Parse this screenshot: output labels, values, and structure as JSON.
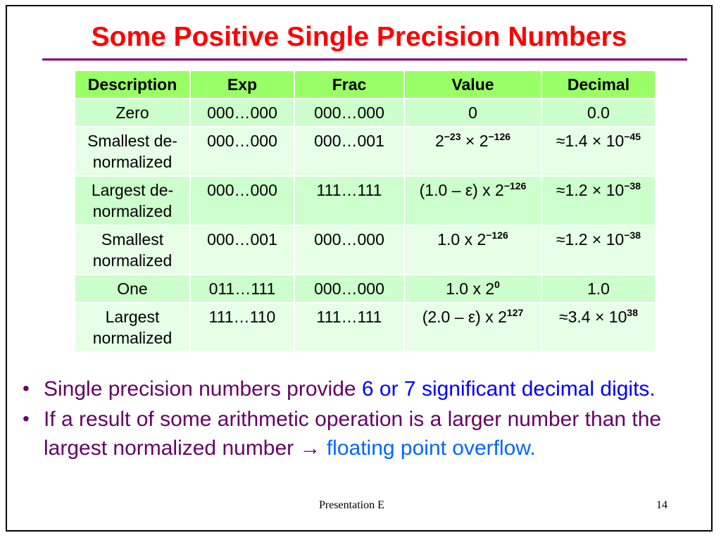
{
  "slide": {
    "title": "Some Positive Single Precision Numbers",
    "table": {
      "headers": [
        "Description",
        "Exp",
        "Frac",
        "Value",
        "Decimal"
      ],
      "rows": [
        {
          "description": "Zero",
          "exp": "000…000",
          "frac": "000…000",
          "value": {
            "pre": "0",
            "exp": "",
            "post": ""
          },
          "decimal": {
            "pre": "0.0",
            "exp": ""
          }
        },
        {
          "description": "Smallest de-normalized",
          "exp": "000…000",
          "frac": "000…001",
          "value": {
            "pre": "2",
            "exp": "−23",
            "post": " × 2",
            "exp2": "−126"
          },
          "decimal": {
            "pre": "≈1.4 × 10",
            "exp": "−45"
          }
        },
        {
          "description": "Largest de-normalized",
          "exp": "000…000",
          "frac": "111…111",
          "value": {
            "pre": "(1.0 – ε) x 2",
            "exp": "−126",
            "post": ""
          },
          "decimal": {
            "pre": "≈1.2 × 10",
            "exp": "−38"
          }
        },
        {
          "description": "Smallest normalized",
          "exp": "000…001",
          "frac": "000…000",
          "value": {
            "pre": "1.0 x 2",
            "exp": "−126",
            "post": ""
          },
          "decimal": {
            "pre": "≈1.2 × 10",
            "exp": "−38"
          }
        },
        {
          "description": "One",
          "exp": "011…111",
          "frac": "000…000",
          "value": {
            "pre": "1.0 x 2",
            "exp": "0",
            "post": ""
          },
          "decimal": {
            "pre": "1.0",
            "exp": ""
          }
        },
        {
          "description": "Largest normalized",
          "exp": "111…110",
          "frac": "111…111",
          "value": {
            "pre": "(2.0 – ε) x 2",
            "exp": "127",
            "post": ""
          },
          "decimal": {
            "pre": "≈3.4 × 10",
            "exp": "38"
          }
        }
      ]
    },
    "bullets": [
      {
        "text": "Single precision numbers provide ",
        "highlight": "6 or 7 significant decimal digits."
      },
      {
        "text": "If a result of some arithmetic operation is a larger number than the largest normalized number → ",
        "highlight": "floating point overflow."
      }
    ],
    "footer": {
      "center": "Presentation E",
      "page_number": "14"
    },
    "colors": {
      "title": "#ff0000",
      "rule": "#800080",
      "header_bg": "#99ff66",
      "row_odd": "#ccffcc",
      "row_even": "#e6ffe6",
      "bullet_text": "#660066",
      "highlight": "#0000ff"
    }
  }
}
